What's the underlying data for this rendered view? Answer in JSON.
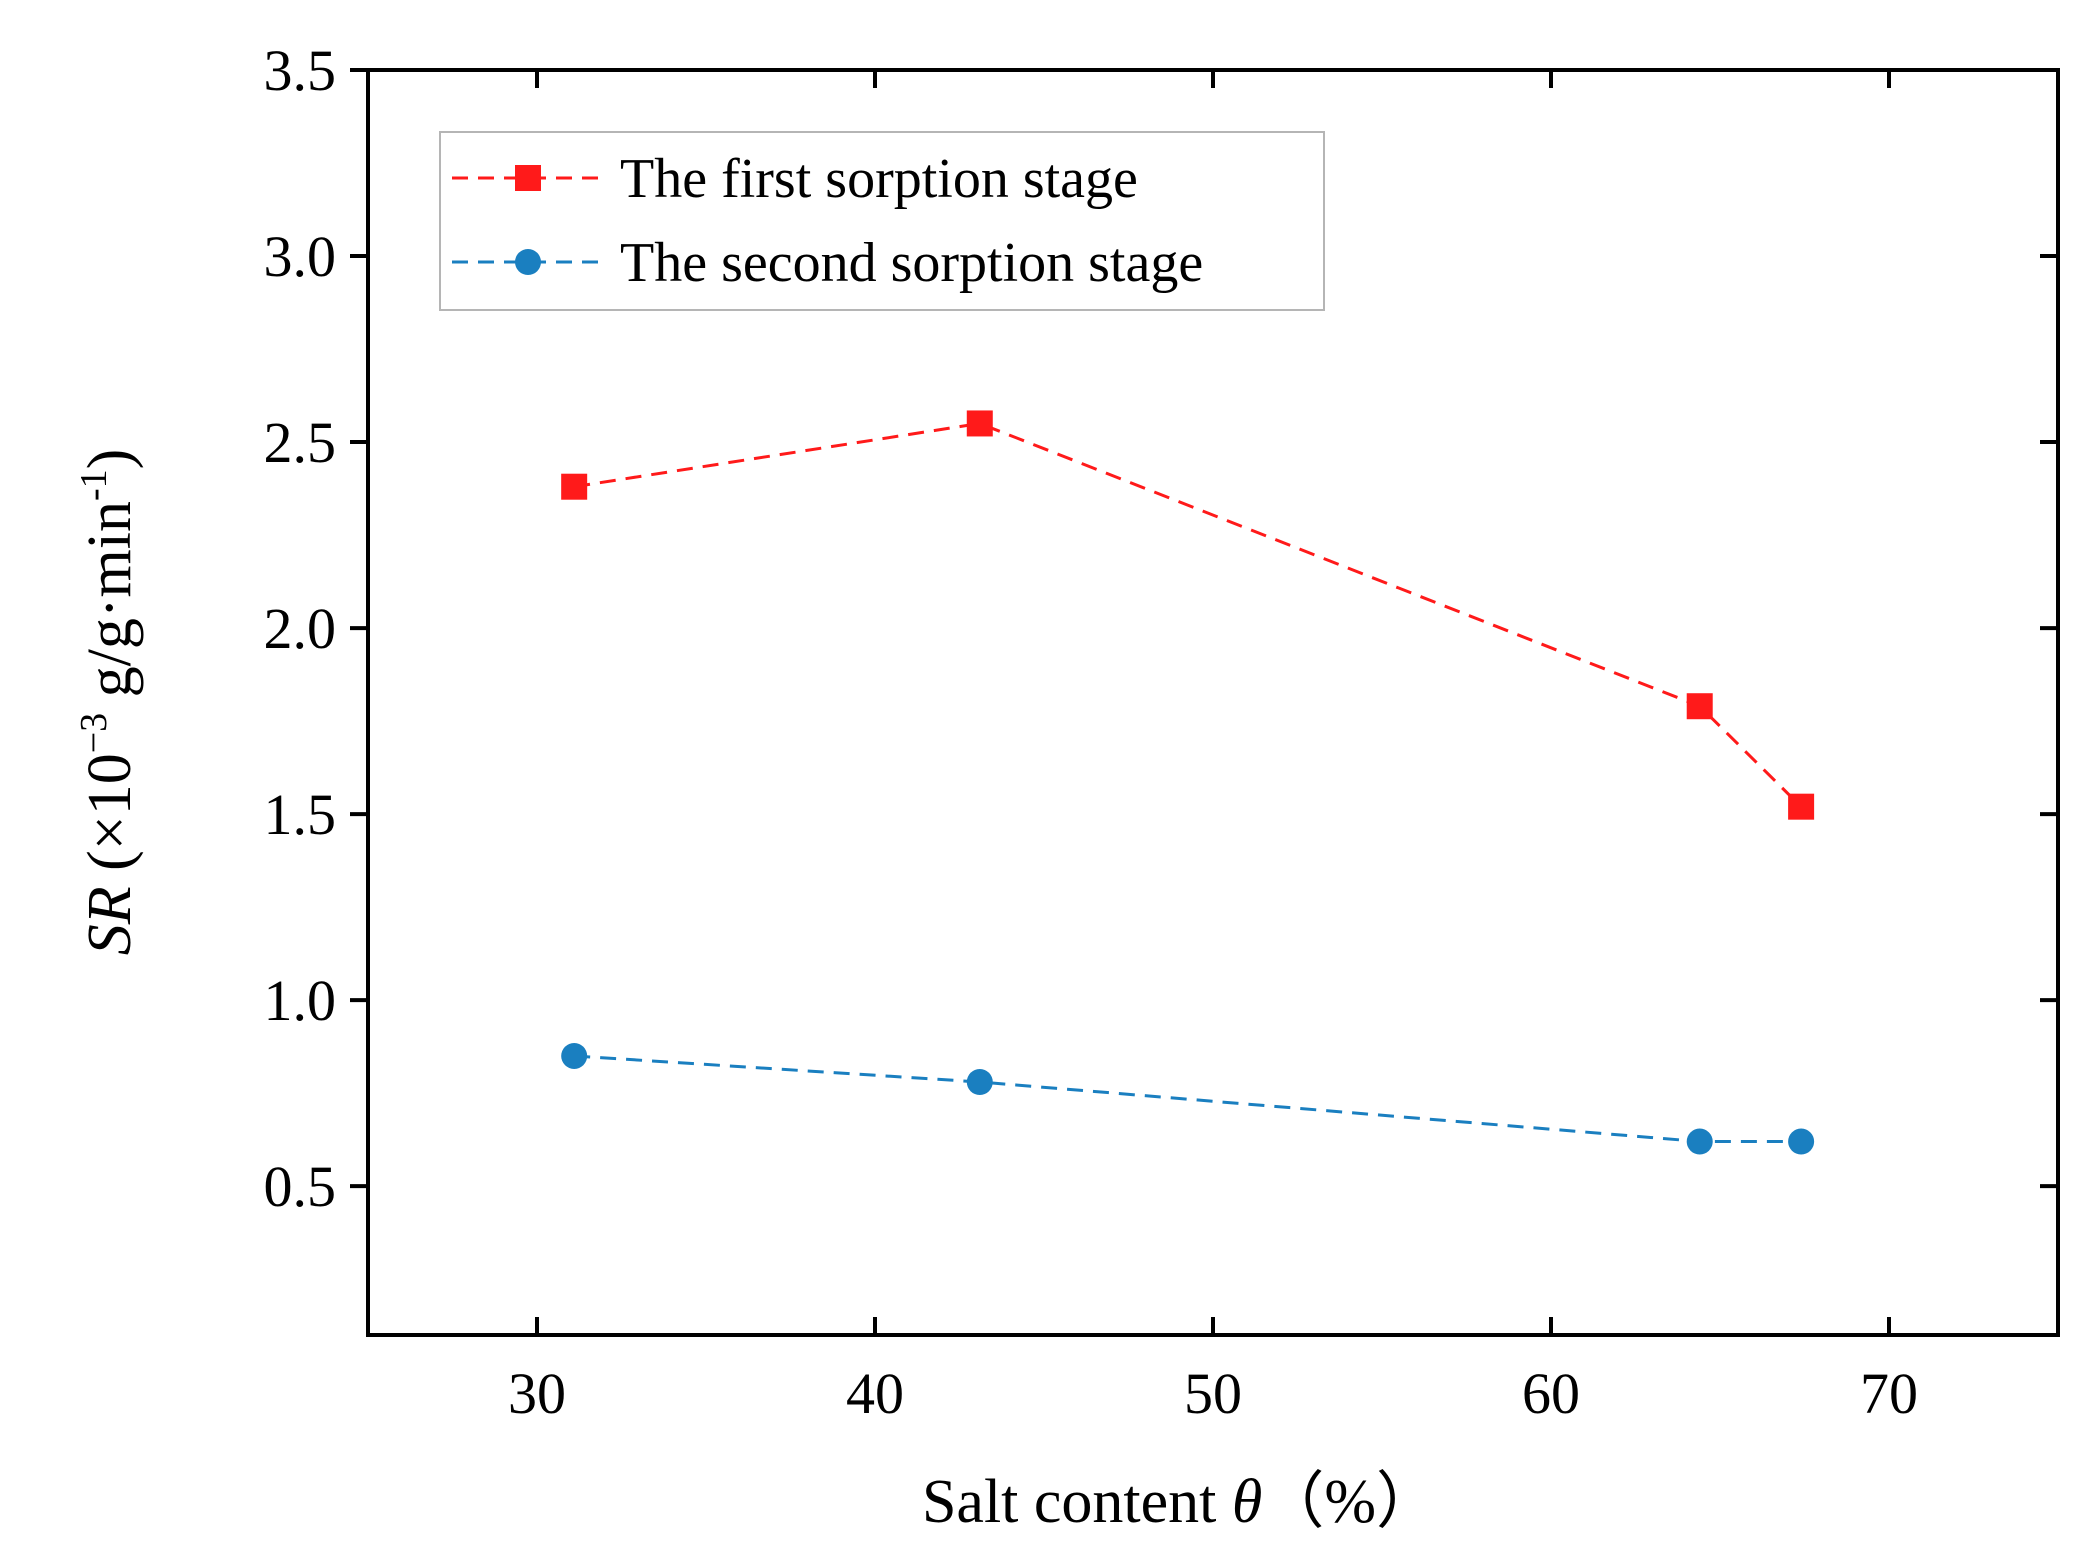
{
  "chart_data": {
    "type": "line",
    "title": "",
    "xlabel": {
      "prefix": "Salt content ",
      "symbol": "θ",
      "suffix": "（%）"
    },
    "ylabel": {
      "italic": "SR",
      "open": " (×10",
      "exp1": "−3",
      "mid": " g/g·min",
      "exp2": "-1",
      "close": ")"
    },
    "xlim": [
      25,
      75
    ],
    "ylim": [
      0.1,
      3.5
    ],
    "xticks": [
      30,
      40,
      50,
      60,
      70
    ],
    "xtick_labels": [
      "30",
      "40",
      "50",
      "60",
      "70"
    ],
    "yticks": [
      0.5,
      1.0,
      1.5,
      2.0,
      2.5,
      3.0,
      3.5
    ],
    "ytick_labels": [
      "0.5",
      "1.0",
      "1.5",
      "2.0",
      "2.5",
      "3.0",
      "3.5"
    ],
    "legend_position": "top-left",
    "series": [
      {
        "name": "The first sorption stage",
        "color": "#ff1a1a",
        "marker": "square",
        "line_style": "dashed",
        "x": [
          31.1,
          43.1,
          64.4,
          67.4
        ],
        "y": [
          2.38,
          2.55,
          1.79,
          1.52
        ]
      },
      {
        "name": "The second sorption stage",
        "color": "#1a7fc0",
        "marker": "circle",
        "line_style": "dashed",
        "x": [
          31.1,
          43.1,
          64.4,
          67.4
        ],
        "y": [
          0.85,
          0.78,
          0.62,
          0.62
        ]
      }
    ]
  }
}
